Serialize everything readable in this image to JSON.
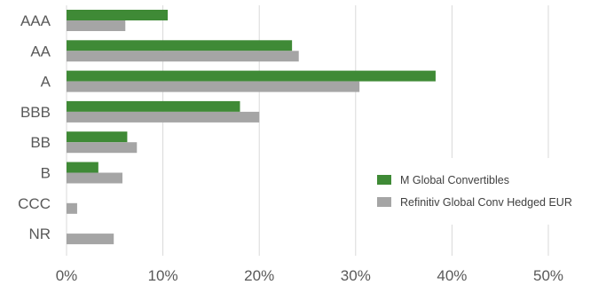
{
  "chart_data": {
    "type": "bar",
    "orientation": "horizontal",
    "categories": [
      "AAA",
      "AA",
      "A",
      "BBB",
      "BB",
      "B",
      "CCC",
      "NR"
    ],
    "series": [
      {
        "name": "M Global Convertibles",
        "color": "#3f8a36",
        "values": [
          10.5,
          23.4,
          38.3,
          18.0,
          6.3,
          3.3,
          0,
          0
        ]
      },
      {
        "name": "Refinitiv Global Conv Hedged EUR",
        "color": "#a5a5a5",
        "values": [
          6.1,
          24.1,
          30.4,
          20.0,
          7.3,
          5.8,
          1.1,
          4.9
        ]
      }
    ],
    "x_ticks": [
      "0%",
      "10%",
      "20%",
      "30%",
      "40%",
      "50%"
    ],
    "xlim": [
      0,
      50
    ],
    "grid": true,
    "legend_position": "right"
  }
}
